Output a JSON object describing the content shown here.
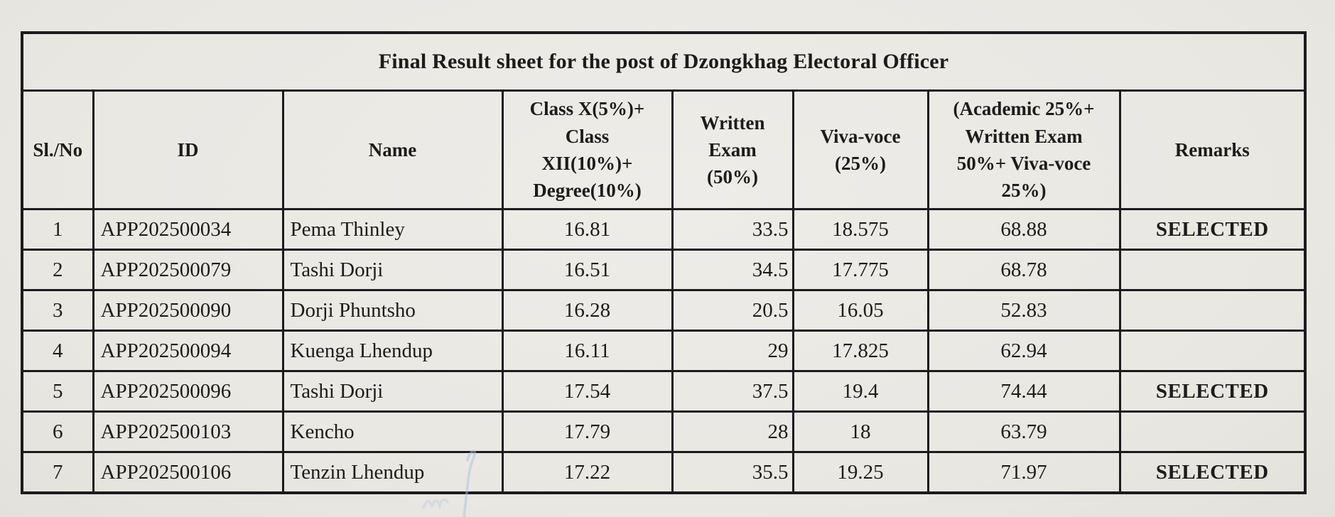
{
  "table": {
    "title": "Final Result sheet for the post of Dzongkhag Electoral Officer",
    "columns": [
      {
        "key": "sl",
        "label": "Sl./No"
      },
      {
        "key": "id",
        "label": "ID"
      },
      {
        "key": "name",
        "label": "Name"
      },
      {
        "key": "academic",
        "label": "Class X(5%)+\nClass\nXII(10%)+\nDegree(10%)"
      },
      {
        "key": "written",
        "label": "Written\nExam\n(50%)"
      },
      {
        "key": "viva",
        "label": "Viva-voce\n(25%)"
      },
      {
        "key": "total",
        "label": "(Academic 25%+\nWritten Exam\n50%+ Viva-voce\n25%)"
      },
      {
        "key": "remarks",
        "label": "Remarks"
      }
    ],
    "rows": [
      {
        "sl": "1",
        "id": "APP202500034",
        "name": "Pema Thinley",
        "academic": "16.81",
        "written": "33.5",
        "viva": "18.575",
        "total": "68.88",
        "remarks": "SELECTED"
      },
      {
        "sl": "2",
        "id": "APP202500079",
        "name": "Tashi Dorji",
        "academic": "16.51",
        "written": "34.5",
        "viva": "17.775",
        "total": "68.78",
        "remarks": ""
      },
      {
        "sl": "3",
        "id": "APP202500090",
        "name": "Dorji Phuntsho",
        "academic": "16.28",
        "written": "20.5",
        "viva": "16.05",
        "total": "52.83",
        "remarks": ""
      },
      {
        "sl": "4",
        "id": "APP202500094",
        "name": "Kuenga Lhendup",
        "academic": "16.11",
        "written": "29",
        "viva": "17.825",
        "total": "62.94",
        "remarks": ""
      },
      {
        "sl": "5",
        "id": "APP202500096",
        "name": "Tashi Dorji",
        "academic": "17.54",
        "written": "37.5",
        "viva": "19.4",
        "total": "74.44",
        "remarks": "SELECTED"
      },
      {
        "sl": "6",
        "id": "APP202500103",
        "name": "Kencho",
        "academic": "17.79",
        "written": "28",
        "viva": "18",
        "total": "63.79",
        "remarks": ""
      },
      {
        "sl": "7",
        "id": "APP202500106",
        "name": "Tenzin Lhendup",
        "academic": "17.22",
        "written": "35.5",
        "viva": "19.25",
        "total": "71.97",
        "remarks": "SELECTED"
      }
    ],
    "colors": {
      "paper": "#eae8e3",
      "line": "#1b1b1b",
      "ink": "#1d1c1a",
      "pen_mark": "#a9c0e0"
    }
  }
}
